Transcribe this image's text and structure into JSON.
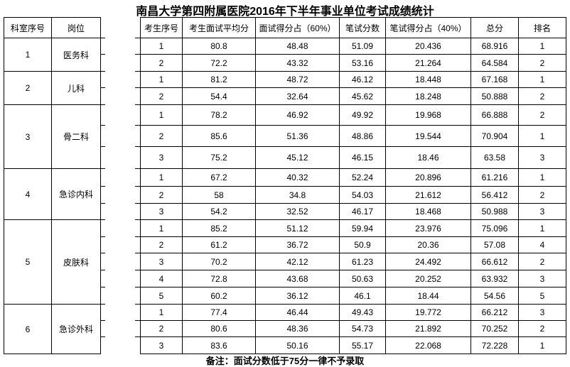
{
  "title": "南昌大学第四附属医院2016年下半年事业单位考试成绩统计",
  "headers": {
    "dept_no": "科室序号",
    "post": "岗位",
    "columns": [
      "考生序号",
      "考生面试平均分",
      "面试得分占（60%）",
      "笔试分数",
      "笔试得分占（40%）",
      "总分",
      "排名"
    ]
  },
  "groups": [
    {
      "dept_no": "1",
      "post": "医务科",
      "rows": [
        [
          "1",
          "80.8",
          "48.48",
          "51.09",
          "20.436",
          "68.916",
          "1"
        ],
        [
          "2",
          "72.2",
          "43.32",
          "53.16",
          "21.264",
          "64.584",
          "2"
        ]
      ]
    },
    {
      "dept_no": "2",
      "post": "儿科",
      "rows": [
        [
          "1",
          "81.2",
          "48.72",
          "46.12",
          "18.448",
          "67.168",
          "1"
        ],
        [
          "2",
          "54.4",
          "32.64",
          "45.62",
          "18.248",
          "50.888",
          "2"
        ]
      ]
    },
    {
      "dept_no": "3",
      "post": "骨二科",
      "rows": [
        [
          "1",
          "78.2",
          "46.92",
          "49.92",
          "19.968",
          "66.888",
          "2"
        ],
        [
          "2",
          "85.6",
          "51.36",
          "48.86",
          "19.544",
          "70.904",
          "1"
        ],
        [
          "3",
          "75.2",
          "45.12",
          "46.15",
          "18.46",
          "63.58",
          "3"
        ]
      ]
    },
    {
      "dept_no": "4",
      "post": "急诊内科",
      "rows": [
        [
          "1",
          "67.2",
          "40.32",
          "52.24",
          "20.896",
          "61.216",
          "1"
        ],
        [
          "2",
          "58",
          "34.8",
          "54.03",
          "21.612",
          "56.412",
          "2"
        ],
        [
          "3",
          "54.2",
          "32.52",
          "46.17",
          "18.468",
          "50.988",
          "3"
        ]
      ]
    },
    {
      "dept_no": "5",
      "post": "皮肤科",
      "rows": [
        [
          "1",
          "85.2",
          "51.12",
          "59.94",
          "23.976",
          "75.096",
          "1"
        ],
        [
          "2",
          "61.2",
          "36.72",
          "50.9",
          "20.36",
          "57.08",
          "4"
        ],
        [
          "3",
          "70.2",
          "42.12",
          "61.23",
          "24.492",
          "66.612",
          "2"
        ],
        [
          "4",
          "72.8",
          "43.68",
          "50.63",
          "20.252",
          "63.932",
          "3"
        ],
        [
          "5",
          "60.2",
          "36.12",
          "46.1",
          "18.44",
          "54.56",
          "5"
        ]
      ]
    },
    {
      "dept_no": "6",
      "post": "急诊外科",
      "rows": [
        [
          "1",
          "77.4",
          "46.44",
          "49.43",
          "19.772",
          "66.212",
          "3"
        ],
        [
          "2",
          "80.6",
          "48.36",
          "54.73",
          "21.892",
          "70.252",
          "2"
        ],
        [
          "3",
          "83.6",
          "50.16",
          "55.17",
          "22.068",
          "72.228",
          "1"
        ]
      ]
    }
  ],
  "note": "备注：面试分数低于75分一律不予录取"
}
